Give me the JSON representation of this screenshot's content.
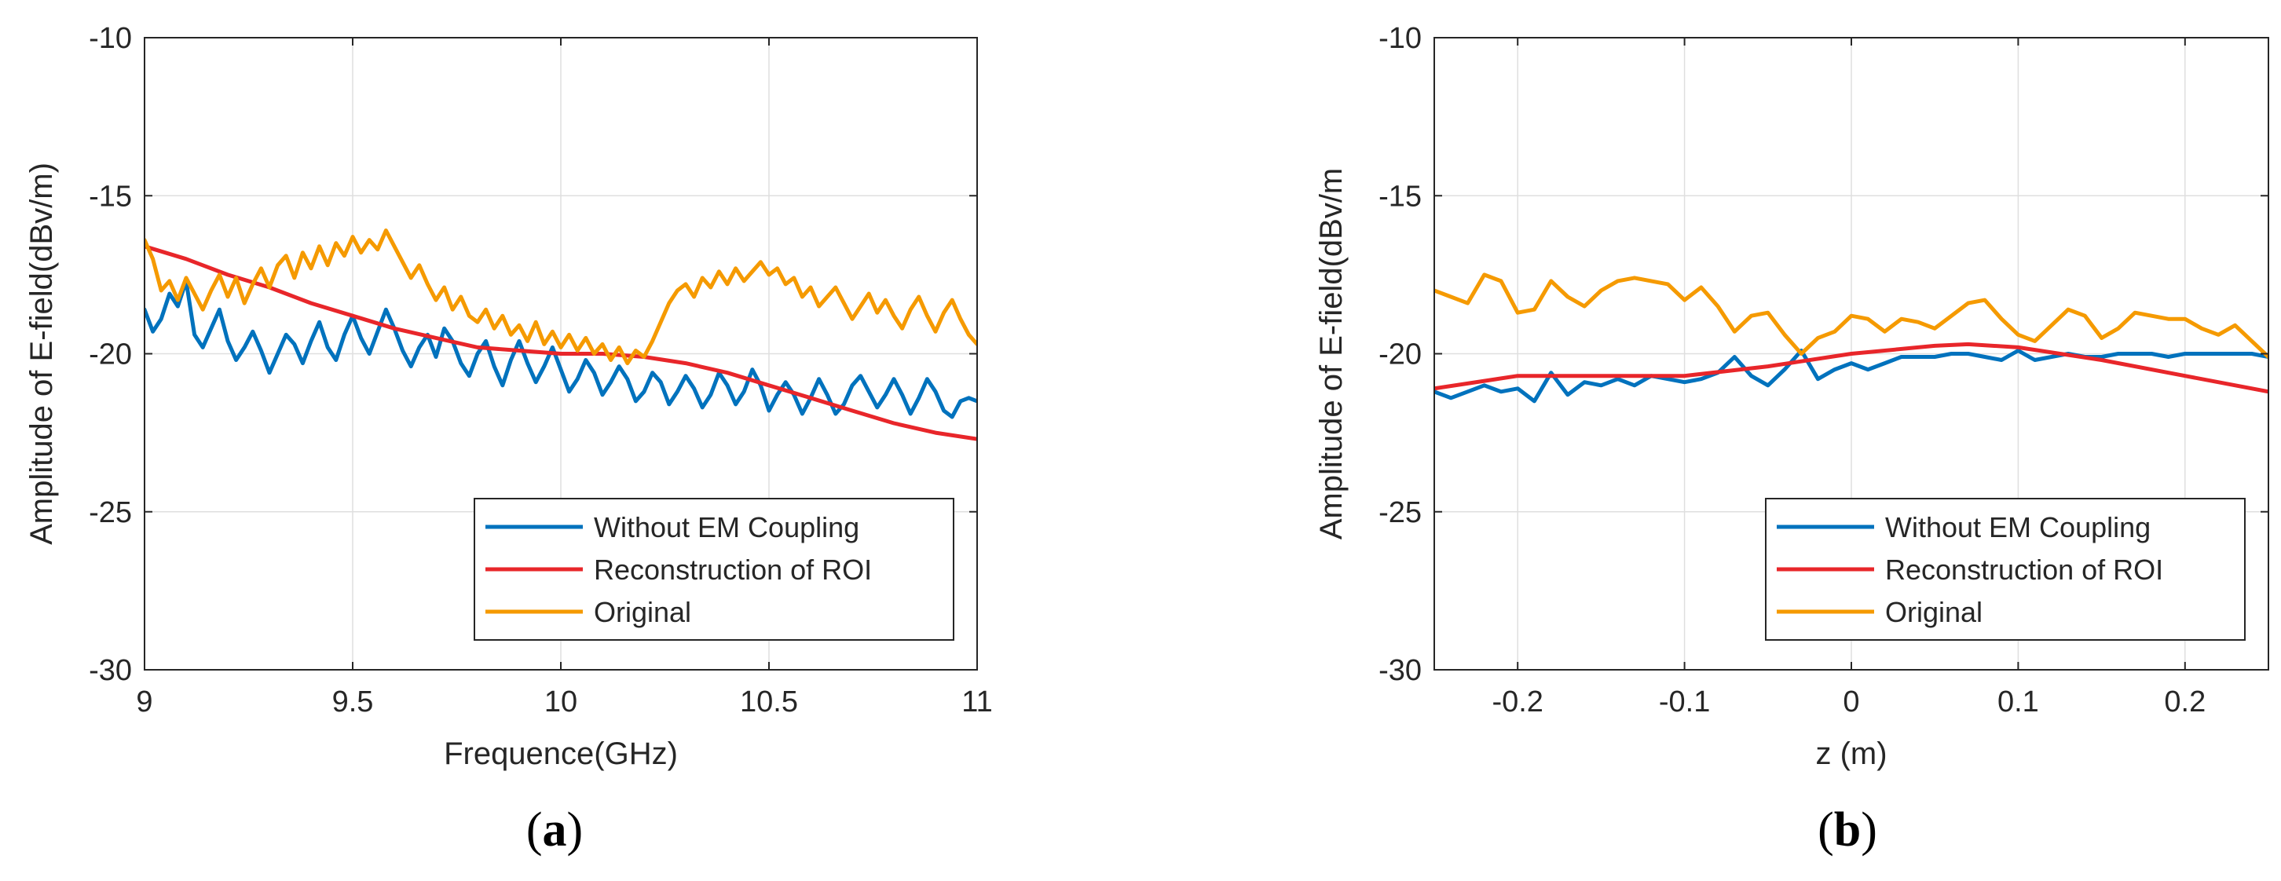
{
  "figure_labels": [
    {
      "open": "(",
      "letter": "a",
      "close": ")"
    },
    {
      "open": "(",
      "letter": "b",
      "close": ")"
    }
  ],
  "colors": {
    "without_em": "#0072BD",
    "reconstruction": "#E8262A",
    "original": "#F59A00",
    "grid": "#DFDFDF",
    "axis": "#262626"
  },
  "chart_data": [
    {
      "type": "line",
      "panel": "a",
      "title": "",
      "xlabel": "Frequence(GHz)",
      "ylabel": "Amplitude of E-field(dBv/m)",
      "xlim": [
        9,
        11
      ],
      "ylim": [
        -30,
        -10
      ],
      "xticks": [
        9,
        9.5,
        10,
        10.5,
        11
      ],
      "xtick_labels": [
        "9",
        "9.5",
        "10",
        "10.5",
        "11"
      ],
      "yticks": [
        -30,
        -25,
        -20,
        -15,
        -10
      ],
      "ytick_labels": [
        "-30",
        "-25",
        "-20",
        "-15",
        "-10"
      ],
      "grid": true,
      "legend_position": "bottom-right",
      "series": [
        {
          "name": "Without EM Coupling",
          "color_key": "without_em",
          "x": [
            9.0,
            9.02,
            9.04,
            9.06,
            9.08,
            9.1,
            9.12,
            9.14,
            9.16,
            9.18,
            9.2,
            9.22,
            9.24,
            9.26,
            9.28,
            9.3,
            9.32,
            9.34,
            9.36,
            9.38,
            9.4,
            9.42,
            9.44,
            9.46,
            9.48,
            9.5,
            9.52,
            9.54,
            9.56,
            9.58,
            9.6,
            9.62,
            9.64,
            9.66,
            9.68,
            9.7,
            9.72,
            9.74,
            9.76,
            9.78,
            9.8,
            9.82,
            9.84,
            9.86,
            9.88,
            9.9,
            9.92,
            9.94,
            9.96,
            9.98,
            10.0,
            10.02,
            10.04,
            10.06,
            10.08,
            10.1,
            10.12,
            10.14,
            10.16,
            10.18,
            10.2,
            10.22,
            10.24,
            10.26,
            10.28,
            10.3,
            10.32,
            10.34,
            10.36,
            10.38,
            10.4,
            10.42,
            10.44,
            10.46,
            10.48,
            10.5,
            10.52,
            10.54,
            10.56,
            10.58,
            10.6,
            10.62,
            10.64,
            10.66,
            10.68,
            10.7,
            10.72,
            10.74,
            10.76,
            10.78,
            10.8,
            10.82,
            10.84,
            10.86,
            10.88,
            10.9,
            10.92,
            10.94,
            10.96,
            10.98,
            11.0
          ],
          "y": [
            -18.6,
            -19.3,
            -18.9,
            -18.1,
            -18.5,
            -17.7,
            -19.4,
            -19.8,
            -19.2,
            -18.6,
            -19.6,
            -20.2,
            -19.8,
            -19.3,
            -19.9,
            -20.6,
            -20.0,
            -19.4,
            -19.7,
            -20.3,
            -19.6,
            -19.0,
            -19.8,
            -20.2,
            -19.4,
            -18.8,
            -19.5,
            -20.0,
            -19.3,
            -18.6,
            -19.2,
            -19.9,
            -20.4,
            -19.8,
            -19.4,
            -20.1,
            -19.2,
            -19.6,
            -20.3,
            -20.7,
            -20.0,
            -19.6,
            -20.4,
            -21.0,
            -20.2,
            -19.6,
            -20.3,
            -20.9,
            -20.4,
            -19.8,
            -20.5,
            -21.2,
            -20.8,
            -20.2,
            -20.6,
            -21.3,
            -20.9,
            -20.4,
            -20.8,
            -21.5,
            -21.2,
            -20.6,
            -20.9,
            -21.6,
            -21.2,
            -20.7,
            -21.1,
            -21.7,
            -21.3,
            -20.6,
            -21.0,
            -21.6,
            -21.2,
            -20.5,
            -21.0,
            -21.8,
            -21.3,
            -20.9,
            -21.3,
            -21.9,
            -21.4,
            -20.8,
            -21.3,
            -21.9,
            -21.6,
            -21.0,
            -20.7,
            -21.2,
            -21.7,
            -21.3,
            -20.8,
            -21.3,
            -21.9,
            -21.4,
            -20.8,
            -21.2,
            -21.8,
            -22.0,
            -21.5,
            -21.4,
            -21.5
          ]
        },
        {
          "name": "Reconstruction of ROI",
          "color_key": "reconstruction",
          "x": [
            9.0,
            9.1,
            9.2,
            9.3,
            9.4,
            9.5,
            9.6,
            9.7,
            9.8,
            9.9,
            10.0,
            10.1,
            10.2,
            10.3,
            10.4,
            10.5,
            10.6,
            10.7,
            10.8,
            10.9,
            11.0
          ],
          "y": [
            -16.6,
            -17.0,
            -17.5,
            -17.9,
            -18.4,
            -18.8,
            -19.2,
            -19.5,
            -19.8,
            -19.9,
            -20.0,
            -20.0,
            -20.1,
            -20.3,
            -20.6,
            -21.0,
            -21.4,
            -21.8,
            -22.2,
            -22.5,
            -22.7
          ]
        },
        {
          "name": "Original",
          "color_key": "original",
          "x": [
            9.0,
            9.02,
            9.04,
            9.06,
            9.08,
            9.1,
            9.12,
            9.14,
            9.16,
            9.18,
            9.2,
            9.22,
            9.24,
            9.26,
            9.28,
            9.3,
            9.32,
            9.34,
            9.36,
            9.38,
            9.4,
            9.42,
            9.44,
            9.46,
            9.48,
            9.5,
            9.52,
            9.54,
            9.56,
            9.58,
            9.6,
            9.62,
            9.64,
            9.66,
            9.68,
            9.7,
            9.72,
            9.74,
            9.76,
            9.78,
            9.8,
            9.82,
            9.84,
            9.86,
            9.88,
            9.9,
            9.92,
            9.94,
            9.96,
            9.98,
            10.0,
            10.02,
            10.04,
            10.06,
            10.08,
            10.1,
            10.12,
            10.14,
            10.16,
            10.18,
            10.2,
            10.22,
            10.24,
            10.26,
            10.28,
            10.3,
            10.32,
            10.34,
            10.36,
            10.38,
            10.4,
            10.42,
            10.44,
            10.46,
            10.48,
            10.5,
            10.52,
            10.54,
            10.56,
            10.58,
            10.6,
            10.62,
            10.64,
            10.66,
            10.68,
            10.7,
            10.72,
            10.74,
            10.76,
            10.78,
            10.8,
            10.82,
            10.84,
            10.86,
            10.88,
            10.9,
            10.92,
            10.94,
            10.96,
            10.98,
            11.0
          ],
          "y": [
            -16.4,
            -17.0,
            -18.0,
            -17.7,
            -18.3,
            -17.6,
            -18.1,
            -18.6,
            -18.0,
            -17.5,
            -18.2,
            -17.6,
            -18.4,
            -17.8,
            -17.3,
            -17.9,
            -17.2,
            -16.9,
            -17.6,
            -16.8,
            -17.3,
            -16.6,
            -17.2,
            -16.5,
            -16.9,
            -16.3,
            -16.8,
            -16.4,
            -16.7,
            -16.1,
            -16.6,
            -17.1,
            -17.6,
            -17.2,
            -17.8,
            -18.3,
            -17.9,
            -18.6,
            -18.2,
            -18.8,
            -19.0,
            -18.6,
            -19.2,
            -18.8,
            -19.4,
            -19.1,
            -19.6,
            -19.0,
            -19.7,
            -19.3,
            -19.8,
            -19.4,
            -19.9,
            -19.5,
            -20.0,
            -19.7,
            -20.2,
            -19.8,
            -20.3,
            -19.9,
            -20.1,
            -19.6,
            -19.0,
            -18.4,
            -18.0,
            -17.8,
            -18.2,
            -17.6,
            -17.9,
            -17.4,
            -17.8,
            -17.3,
            -17.7,
            -17.4,
            -17.1,
            -17.5,
            -17.3,
            -17.8,
            -17.6,
            -18.2,
            -17.9,
            -18.5,
            -18.2,
            -17.9,
            -18.4,
            -18.9,
            -18.5,
            -18.1,
            -18.7,
            -18.3,
            -18.8,
            -19.2,
            -18.6,
            -18.2,
            -18.8,
            -19.3,
            -18.7,
            -18.3,
            -18.9,
            -19.4,
            -19.7
          ]
        }
      ]
    },
    {
      "type": "line",
      "panel": "b",
      "title": "",
      "xlabel": "z (m)",
      "ylabel": "Amplitude of E-field(dBv/m",
      "xlim": [
        -0.25,
        0.25
      ],
      "ylim": [
        -30,
        -10
      ],
      "xticks": [
        -0.2,
        -0.1,
        0,
        0.1,
        0.2
      ],
      "xtick_labels": [
        "-0.2",
        "-0.1",
        "0",
        "0.1",
        "0.2"
      ],
      "yticks": [
        -30,
        -25,
        -20,
        -15,
        -10
      ],
      "ytick_labels": [
        "-30",
        "-25",
        "-20",
        "-15",
        "-10"
      ],
      "grid": true,
      "legend_position": "bottom-right",
      "series": [
        {
          "name": "Without EM Coupling",
          "color_key": "without_em",
          "x": [
            -0.25,
            -0.24,
            -0.23,
            -0.22,
            -0.21,
            -0.2,
            -0.19,
            -0.18,
            -0.17,
            -0.16,
            -0.15,
            -0.14,
            -0.13,
            -0.12,
            -0.11,
            -0.1,
            -0.09,
            -0.08,
            -0.07,
            -0.06,
            -0.05,
            -0.04,
            -0.03,
            -0.02,
            -0.01,
            0.0,
            0.01,
            0.02,
            0.03,
            0.04,
            0.05,
            0.06,
            0.07,
            0.08,
            0.09,
            0.1,
            0.11,
            0.12,
            0.13,
            0.14,
            0.15,
            0.16,
            0.17,
            0.18,
            0.19,
            0.2,
            0.21,
            0.22,
            0.23,
            0.24,
            0.25
          ],
          "y": [
            -21.2,
            -21.4,
            -21.2,
            -21.0,
            -21.2,
            -21.1,
            -21.5,
            -20.6,
            -21.3,
            -20.9,
            -21.0,
            -20.8,
            -21.0,
            -20.7,
            -20.8,
            -20.9,
            -20.8,
            -20.6,
            -20.1,
            -20.7,
            -21.0,
            -20.5,
            -19.9,
            -20.8,
            -20.5,
            -20.3,
            -20.5,
            -20.3,
            -20.1,
            -20.1,
            -20.1,
            -20.0,
            -20.0,
            -20.1,
            -20.2,
            -19.9,
            -20.2,
            -20.1,
            -20.0,
            -20.1,
            -20.1,
            -20.0,
            -20.0,
            -20.0,
            -20.1,
            -20.0,
            -20.0,
            -20.0,
            -20.0,
            -20.0,
            -20.1
          ]
        },
        {
          "name": "Reconstruction of ROI",
          "color_key": "reconstruction",
          "x": [
            -0.25,
            -0.2,
            -0.15,
            -0.1,
            -0.05,
            0.0,
            0.05,
            0.07,
            0.1,
            0.15,
            0.2,
            0.25
          ],
          "y": [
            -21.1,
            -20.7,
            -20.7,
            -20.7,
            -20.4,
            -20.0,
            -19.75,
            -19.7,
            -19.8,
            -20.2,
            -20.7,
            -21.2
          ]
        },
        {
          "name": "Original",
          "color_key": "original",
          "x": [
            -0.25,
            -0.24,
            -0.23,
            -0.22,
            -0.21,
            -0.2,
            -0.19,
            -0.18,
            -0.17,
            -0.16,
            -0.15,
            -0.14,
            -0.13,
            -0.12,
            -0.11,
            -0.1,
            -0.09,
            -0.08,
            -0.07,
            -0.06,
            -0.05,
            -0.04,
            -0.03,
            -0.02,
            -0.01,
            0.0,
            0.01,
            0.02,
            0.03,
            0.04,
            0.05,
            0.06,
            0.07,
            0.08,
            0.09,
            0.1,
            0.11,
            0.12,
            0.13,
            0.14,
            0.15,
            0.16,
            0.17,
            0.18,
            0.19,
            0.2,
            0.21,
            0.22,
            0.23,
            0.24,
            0.25
          ],
          "y": [
            -18.0,
            -18.2,
            -18.4,
            -17.5,
            -17.7,
            -18.7,
            -18.6,
            -17.7,
            -18.2,
            -18.5,
            -18.0,
            -17.7,
            -17.6,
            -17.7,
            -17.8,
            -18.3,
            -17.9,
            -18.5,
            -19.3,
            -18.8,
            -18.7,
            -19.4,
            -20.0,
            -19.5,
            -19.3,
            -18.8,
            -18.9,
            -19.3,
            -18.9,
            -19.0,
            -19.2,
            -18.8,
            -18.4,
            -18.3,
            -18.9,
            -19.4,
            -19.6,
            -19.1,
            -18.6,
            -18.8,
            -19.5,
            -19.2,
            -18.7,
            -18.8,
            -18.9,
            -18.9,
            -19.2,
            -19.4,
            -19.1,
            -19.6,
            -20.1
          ]
        }
      ]
    }
  ]
}
